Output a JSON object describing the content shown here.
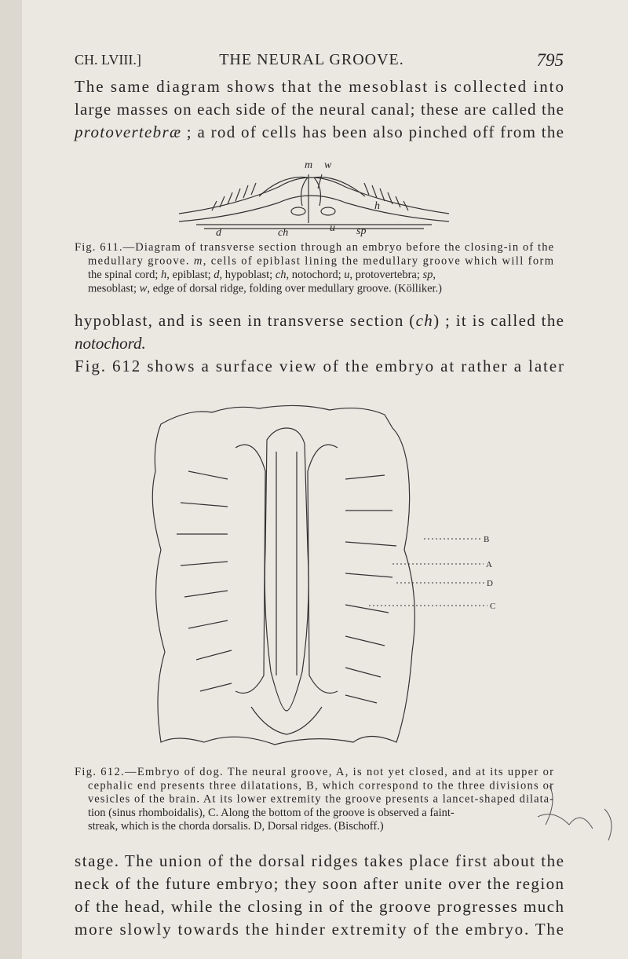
{
  "header": {
    "chapter": "CH. LVIII.]",
    "title": "THE NEURAL GROOVE.",
    "page_number": "795"
  },
  "paragraph_1": {
    "lines": [
      [
        "The same diagram shows that the mesoblast is collected into"
      ],
      [
        "large masses on each side of the neural canal; these are called the"
      ],
      [
        {
          "text": "protovertebræ",
          "italic": true
        },
        " ; a rod of cells has been also pinched off from the"
      ]
    ]
  },
  "figure_611": {
    "labels": [
      "m",
      "w",
      "h",
      "d",
      "ch",
      "u",
      "sp"
    ],
    "caption_lines": [
      [
        "Fig. 611.—Diagram of transverse section through an embryo before the closing-in of the"
      ],
      [
        "medullary groove. ",
        {
          "text": "m",
          "italic": true
        },
        ", cells of epiblast lining the medullary groove which will form"
      ],
      [
        "the spinal cord; ",
        {
          "text": "h",
          "italic": true
        },
        ", epiblast; ",
        {
          "text": "d",
          "italic": true
        },
        ", hypoblast; ",
        {
          "text": "ch",
          "italic": true
        },
        ", notochord; ",
        {
          "text": "u",
          "italic": true
        },
        ", protovertebra; ",
        {
          "text": "sp",
          "italic": true
        },
        ","
      ],
      [
        "mesoblast; ",
        {
          "text": "w",
          "italic": true
        },
        ", edge of dorsal ridge, folding over medullary groove. (Kölliker.)"
      ]
    ]
  },
  "paragraph_2": {
    "lines": [
      [
        "hypoblast, and is seen in transverse section (",
        {
          "text": "ch",
          "italic": true
        },
        ") ; it is called the"
      ],
      [
        {
          "text": "notochord.",
          "italic": true
        }
      ],
      [
        "Fig. 612 shows a surface view of the embryo at rather a later"
      ]
    ]
  },
  "figure_612": {
    "labels": [
      "B",
      "A",
      "D",
      "C"
    ],
    "caption_lines": [
      [
        "Fig. 612.—Embryo of dog. The neural groove, A, is not yet closed, and at its upper or"
      ],
      [
        "cephalic end presents three dilatations, B, which correspond to the three divisions or"
      ],
      [
        "vesicles of the brain. At its lower extremity the groove presents a lancet-shaped dilata-"
      ],
      [
        "tion (sinus rhomboidalis), C. Along the bottom of the groove is observed a faint-"
      ],
      [
        "streak, which is the chorda dorsalis. D, Dorsal ridges. (Bischoff.)"
      ]
    ]
  },
  "paragraph_3": {
    "lines": [
      [
        "stage. The union of the dorsal ridges takes place first about the"
      ],
      [
        "neck of the future embryo; they soon after unite over the region"
      ],
      [
        "of the head, while the closing in of the groove progresses much"
      ],
      [
        "more slowly towards the hinder extremity of the embryo. The"
      ]
    ]
  }
}
